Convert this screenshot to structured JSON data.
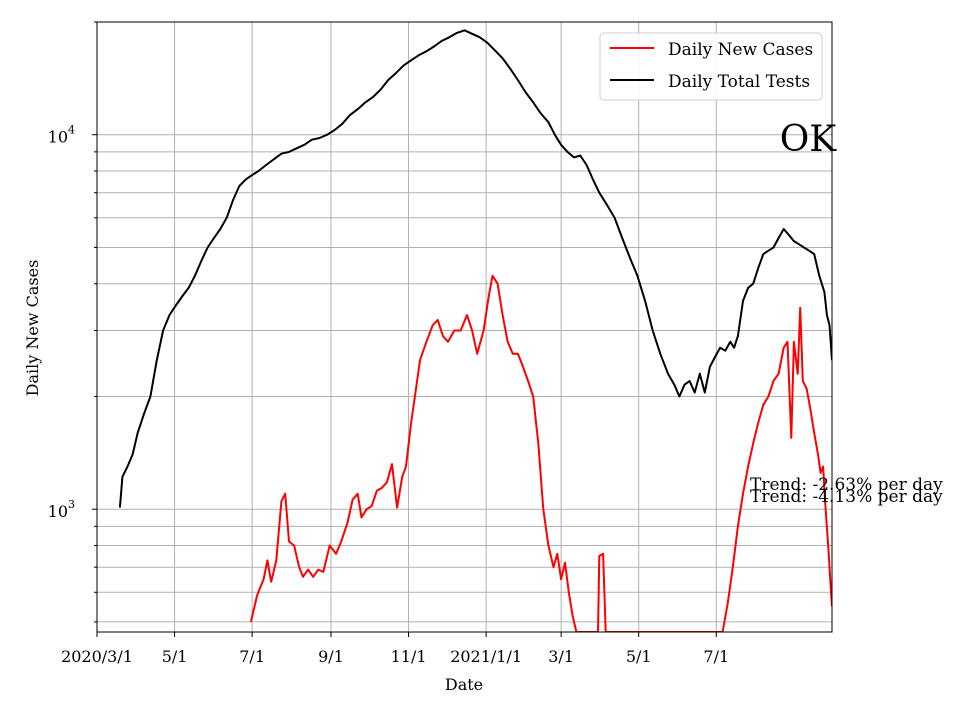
{
  "chart_data": {
    "type": "line",
    "xlabel": "Date",
    "ylabel": "Daily New Cases",
    "y_scale": "log",
    "ylim": [
      470,
      20000
    ],
    "xlim": [
      "2020-03-01",
      "2021-09-30"
    ],
    "grid": true,
    "legend_position": "upper-right",
    "status_label": "OK",
    "x_ticks": [
      {
        "date": "2020-03-01",
        "label": "2020/3/1"
      },
      {
        "date": "2020-05-01",
        "label": "5/1"
      },
      {
        "date": "2020-07-01",
        "label": "7/1"
      },
      {
        "date": "2020-09-01",
        "label": "9/1"
      },
      {
        "date": "2020-11-01",
        "label": "11/1"
      },
      {
        "date": "2021-01-01",
        "label": "2021/1/1"
      },
      {
        "date": "2021-03-01",
        "label": "3/1"
      },
      {
        "date": "2021-05-01",
        "label": "5/1"
      },
      {
        "date": "2021-07-01",
        "label": "7/1"
      }
    ],
    "y_ticks": [
      {
        "value": 1000,
        "base": "10",
        "exp": "3"
      },
      {
        "value": 10000,
        "base": "10",
        "exp": "4"
      }
    ],
    "annotations": [
      {
        "text": "Trend: -2.63% per day",
        "color": "#000000"
      },
      {
        "text": "Trend: -4.13% per day",
        "color": "#000000"
      }
    ],
    "series": [
      {
        "name": "Daily New Cases",
        "color": "#ff0000",
        "points": [
          [
            "2020-06-30",
            500
          ],
          [
            "2020-07-05",
            590
          ],
          [
            "2020-07-10",
            650
          ],
          [
            "2020-07-13",
            730
          ],
          [
            "2020-07-16",
            640
          ],
          [
            "2020-07-20",
            730
          ],
          [
            "2020-07-24",
            1050
          ],
          [
            "2020-07-27",
            1100
          ],
          [
            "2020-07-30",
            820
          ],
          [
            "2020-08-03",
            800
          ],
          [
            "2020-08-07",
            700
          ],
          [
            "2020-08-10",
            660
          ],
          [
            "2020-08-14",
            690
          ],
          [
            "2020-08-18",
            660
          ],
          [
            "2020-08-22",
            690
          ],
          [
            "2020-08-26",
            680
          ],
          [
            "2020-08-31",
            800
          ],
          [
            "2020-09-05",
            760
          ],
          [
            "2020-09-09",
            820
          ],
          [
            "2020-09-14",
            920
          ],
          [
            "2020-09-18",
            1060
          ],
          [
            "2020-09-22",
            1100
          ],
          [
            "2020-09-25",
            950
          ],
          [
            "2020-09-29",
            1000
          ],
          [
            "2020-10-03",
            1020
          ],
          [
            "2020-10-07",
            1120
          ],
          [
            "2020-10-11",
            1140
          ],
          [
            "2020-10-15",
            1180
          ],
          [
            "2020-10-19",
            1320
          ],
          [
            "2020-10-23",
            1010
          ],
          [
            "2020-10-27",
            1220
          ],
          [
            "2020-10-30",
            1300
          ],
          [
            "2020-11-03",
            1700
          ],
          [
            "2020-11-06",
            2000
          ],
          [
            "2020-11-10",
            2500
          ],
          [
            "2020-11-15",
            2800
          ],
          [
            "2020-11-20",
            3100
          ],
          [
            "2020-11-24",
            3200
          ],
          [
            "2020-11-28",
            2900
          ],
          [
            "2020-12-02",
            2800
          ],
          [
            "2020-12-07",
            3000
          ],
          [
            "2020-12-12",
            3000
          ],
          [
            "2020-12-17",
            3300
          ],
          [
            "2020-12-21",
            3000
          ],
          [
            "2020-12-25",
            2600
          ],
          [
            "2020-12-30",
            3000
          ],
          [
            "2021-01-03",
            3700
          ],
          [
            "2021-01-06",
            4200
          ],
          [
            "2021-01-10",
            4000
          ],
          [
            "2021-01-14",
            3300
          ],
          [
            "2021-01-18",
            2800
          ],
          [
            "2021-01-22",
            2600
          ],
          [
            "2021-01-26",
            2600
          ],
          [
            "2021-01-30",
            2400
          ],
          [
            "2021-02-03",
            2200
          ],
          [
            "2021-02-07",
            2000
          ],
          [
            "2021-02-11",
            1500
          ],
          [
            "2021-02-15",
            1000
          ],
          [
            "2021-02-19",
            800
          ],
          [
            "2021-02-23",
            700
          ],
          [
            "2021-02-26",
            760
          ],
          [
            "2021-03-01",
            650
          ],
          [
            "2021-03-04",
            720
          ],
          [
            "2021-03-07",
            600
          ],
          [
            "2021-03-10",
            520
          ],
          [
            "2021-03-13",
            470
          ],
          [
            "2021-03-30",
            470
          ],
          [
            "2021-03-31",
            750
          ],
          [
            "2021-04-03",
            760
          ],
          [
            "2021-04-05",
            470
          ],
          [
            "2021-07-06",
            470
          ],
          [
            "2021-07-10",
            560
          ],
          [
            "2021-07-14",
            700
          ],
          [
            "2021-07-18",
            900
          ],
          [
            "2021-07-22",
            1100
          ],
          [
            "2021-07-26",
            1300
          ],
          [
            "2021-07-30",
            1500
          ],
          [
            "2021-08-03",
            1700
          ],
          [
            "2021-08-07",
            1900
          ],
          [
            "2021-08-11",
            2000
          ],
          [
            "2021-08-15",
            2200
          ],
          [
            "2021-08-19",
            2300
          ],
          [
            "2021-08-23",
            2700
          ],
          [
            "2021-08-26",
            2800
          ],
          [
            "2021-08-29",
            1550
          ],
          [
            "2021-08-31",
            2800
          ],
          [
            "2021-09-03",
            2300
          ],
          [
            "2021-09-05",
            3450
          ],
          [
            "2021-09-07",
            2200
          ],
          [
            "2021-09-10",
            2100
          ],
          [
            "2021-09-13",
            1850
          ],
          [
            "2021-09-16",
            1600
          ],
          [
            "2021-09-19",
            1400
          ],
          [
            "2021-09-21",
            1250
          ],
          [
            "2021-09-23",
            1300
          ],
          [
            "2021-09-25",
            1000
          ],
          [
            "2021-09-27",
            800
          ],
          [
            "2021-09-29",
            620
          ],
          [
            "2021-09-30",
            550
          ]
        ]
      },
      {
        "name": "Daily Total Tests",
        "color": "#000000",
        "points": [
          [
            "2020-03-19",
            1010
          ],
          [
            "2020-03-21",
            1220
          ],
          [
            "2020-03-25",
            1300
          ],
          [
            "2020-03-29",
            1400
          ],
          [
            "2020-04-02",
            1600
          ],
          [
            "2020-04-07",
            1800
          ],
          [
            "2020-04-12",
            2000
          ],
          [
            "2020-04-17",
            2500
          ],
          [
            "2020-04-22",
            3000
          ],
          [
            "2020-04-27",
            3300
          ],
          [
            "2020-05-02",
            3500
          ],
          [
            "2020-05-07",
            3700
          ],
          [
            "2020-05-12",
            3900
          ],
          [
            "2020-05-17",
            4200
          ],
          [
            "2020-05-22",
            4600
          ],
          [
            "2020-05-27",
            5000
          ],
          [
            "2020-06-01",
            5300
          ],
          [
            "2020-06-06",
            5600
          ],
          [
            "2020-06-11",
            6000
          ],
          [
            "2020-06-16",
            6700
          ],
          [
            "2020-06-21",
            7300
          ],
          [
            "2020-06-26",
            7600
          ],
          [
            "2020-07-01",
            7800
          ],
          [
            "2020-07-06",
            8000
          ],
          [
            "2020-07-12",
            8300
          ],
          [
            "2020-07-18",
            8600
          ],
          [
            "2020-07-24",
            8900
          ],
          [
            "2020-07-30",
            9000
          ],
          [
            "2020-08-05",
            9200
          ],
          [
            "2020-08-11",
            9400
          ],
          [
            "2020-08-17",
            9700
          ],
          [
            "2020-08-23",
            9800
          ],
          [
            "2020-08-29",
            10000
          ],
          [
            "2020-09-04",
            10300
          ],
          [
            "2020-09-10",
            10700
          ],
          [
            "2020-09-16",
            11300
          ],
          [
            "2020-09-22",
            11700
          ],
          [
            "2020-09-28",
            12200
          ],
          [
            "2020-10-04",
            12600
          ],
          [
            "2020-10-10",
            13200
          ],
          [
            "2020-10-16",
            14000
          ],
          [
            "2020-10-22",
            14600
          ],
          [
            "2020-10-28",
            15300
          ],
          [
            "2020-11-03",
            15800
          ],
          [
            "2020-11-09",
            16300
          ],
          [
            "2020-11-15",
            16700
          ],
          [
            "2020-11-21",
            17200
          ],
          [
            "2020-11-27",
            17800
          ],
          [
            "2020-12-03",
            18200
          ],
          [
            "2020-12-09",
            18700
          ],
          [
            "2020-12-15",
            19000
          ],
          [
            "2020-12-21",
            18600
          ],
          [
            "2020-12-27",
            18200
          ],
          [
            "2021-01-02",
            17600
          ],
          [
            "2021-01-08",
            16800
          ],
          [
            "2021-01-14",
            16000
          ],
          [
            "2021-01-20",
            15000
          ],
          [
            "2021-01-26",
            14000
          ],
          [
            "2021-02-01",
            13000
          ],
          [
            "2021-02-07",
            12200
          ],
          [
            "2021-02-13",
            11400
          ],
          [
            "2021-02-19",
            10800
          ],
          [
            "2021-02-24",
            10000
          ],
          [
            "2021-03-01",
            9400
          ],
          [
            "2021-03-06",
            9000
          ],
          [
            "2021-03-11",
            8700
          ],
          [
            "2021-03-16",
            8800
          ],
          [
            "2021-03-21",
            8300
          ],
          [
            "2021-03-26",
            7600
          ],
          [
            "2021-03-31",
            7000
          ],
          [
            "2021-04-06",
            6500
          ],
          [
            "2021-04-12",
            6000
          ],
          [
            "2021-04-18",
            5300
          ],
          [
            "2021-04-24",
            4700
          ],
          [
            "2021-04-30",
            4200
          ],
          [
            "2021-05-06",
            3600
          ],
          [
            "2021-05-12",
            3000
          ],
          [
            "2021-05-18",
            2600
          ],
          [
            "2021-05-24",
            2300
          ],
          [
            "2021-05-29",
            2150
          ],
          [
            "2021-06-02",
            2000
          ],
          [
            "2021-06-06",
            2150
          ],
          [
            "2021-06-10",
            2200
          ],
          [
            "2021-06-14",
            2050
          ],
          [
            "2021-06-18",
            2300
          ],
          [
            "2021-06-22",
            2050
          ],
          [
            "2021-06-26",
            2400
          ],
          [
            "2021-06-30",
            2550
          ],
          [
            "2021-07-04",
            2700
          ],
          [
            "2021-07-08",
            2650
          ],
          [
            "2021-07-12",
            2800
          ],
          [
            "2021-07-15",
            2700
          ],
          [
            "2021-07-18",
            2900
          ],
          [
            "2021-07-22",
            3600
          ],
          [
            "2021-07-26",
            3900
          ],
          [
            "2021-07-30",
            4000
          ],
          [
            "2021-08-03",
            4400
          ],
          [
            "2021-08-07",
            4800
          ],
          [
            "2021-08-11",
            4900
          ],
          [
            "2021-08-15",
            5000
          ],
          [
            "2021-08-19",
            5300
          ],
          [
            "2021-08-23",
            5600
          ],
          [
            "2021-08-27",
            5400
          ],
          [
            "2021-08-31",
            5200
          ],
          [
            "2021-09-04",
            5100
          ],
          [
            "2021-09-08",
            5000
          ],
          [
            "2021-09-12",
            4900
          ],
          [
            "2021-09-16",
            4800
          ],
          [
            "2021-09-20",
            4200
          ],
          [
            "2021-09-24",
            3800
          ],
          [
            "2021-09-26",
            3300
          ],
          [
            "2021-09-28",
            3100
          ],
          [
            "2021-09-30",
            2500
          ]
        ]
      }
    ]
  }
}
